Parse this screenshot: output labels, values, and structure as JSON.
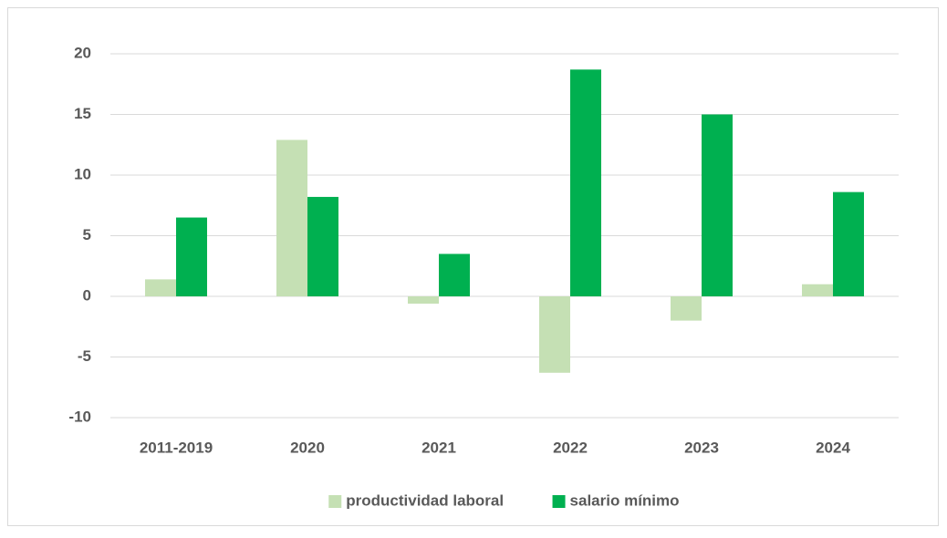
{
  "chart_data": {
    "type": "bar",
    "categories": [
      "2011-2019",
      "2020",
      "2021",
      "2022",
      "2023",
      "2024"
    ],
    "series": [
      {
        "name": "productividad laboral",
        "color": "#c5e0b4",
        "values": [
          1.4,
          12.9,
          -0.6,
          -6.3,
          -2.0,
          1.0
        ]
      },
      {
        "name": "salario mínimo",
        "color": "#00b050",
        "values": [
          6.5,
          8.2,
          3.5,
          18.7,
          15.0,
          8.6
        ]
      }
    ],
    "ylim": [
      -10,
      20
    ],
    "yticks": [
      -10,
      -5,
      0,
      5,
      10,
      15,
      20
    ],
    "grid": true,
    "legend": "bottom"
  }
}
